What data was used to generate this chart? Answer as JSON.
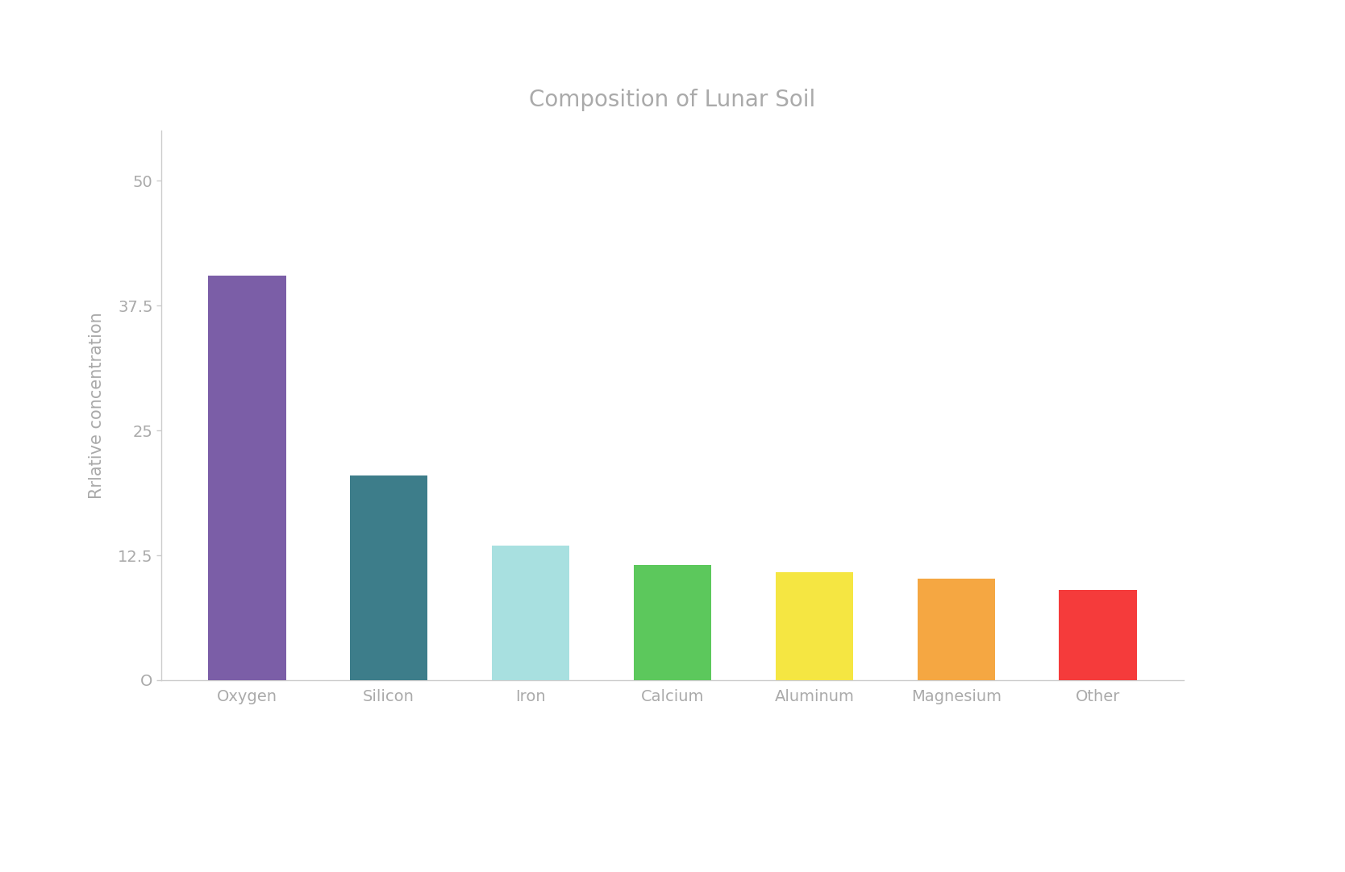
{
  "title": "Composition of Lunar Soil",
  "ylabel": "Rrlative concentration",
  "categories": [
    "Oxygen",
    "Silicon",
    "Iron",
    "Calcium",
    "Aluminum",
    "Magnesium",
    "Other"
  ],
  "values": [
    40.5,
    20.5,
    13.5,
    11.5,
    10.8,
    10.2,
    9.0
  ],
  "bar_colors": [
    "#7B5EA7",
    "#3D7D8A",
    "#A8E0E0",
    "#5CC85C",
    "#F5E642",
    "#F5A742",
    "#F53B3B"
  ],
  "background_color": "#FFFFFF",
  "title_color": "#AAAAAA",
  "label_color": "#AAAAAA",
  "tick_color": "#AAAAAA",
  "axis_color": "#CCCCCC",
  "ylim": [
    0,
    55
  ],
  "ytick_vals": [
    0,
    12.5,
    25,
    37.5,
    50
  ],
  "ytick_labels": [
    "O",
    "12.5",
    "25",
    "37.5",
    "50"
  ],
  "title_fontsize": 20,
  "label_fontsize": 15,
  "tick_fontsize": 14,
  "bar_width": 0.55
}
